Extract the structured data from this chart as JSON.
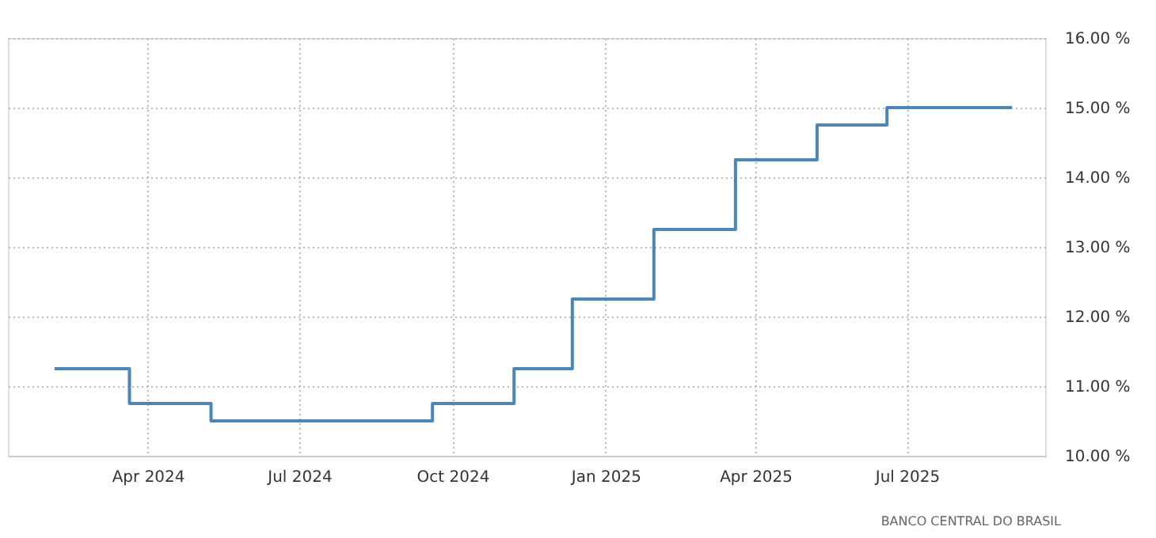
{
  "chart_data": {
    "type": "step",
    "x": [
      "2024-02-05",
      "2024-03-21",
      "2024-05-09",
      "2024-09-19",
      "2024-11-07",
      "2024-12-12",
      "2025-01-30",
      "2025-03-20",
      "2025-05-08",
      "2025-06-19",
      "2025-09-02"
    ],
    "series": [
      {
        "color": "#4b86b9",
        "values": [
          11.25,
          10.75,
          10.5,
          10.75,
          11.25,
          12.25,
          13.25,
          14.25,
          14.75,
          15.0,
          15.0
        ]
      }
    ],
    "xlim": [
      "2024-01-08",
      "2025-09-22"
    ],
    "xticks": [
      {
        "value": "2024-04-01",
        "label": "Apr 2024"
      },
      {
        "value": "2024-07-01",
        "label": "Jul 2024"
      },
      {
        "value": "2024-10-01",
        "label": "Oct 2024"
      },
      {
        "value": "2025-01-01",
        "label": "Jan 2025"
      },
      {
        "value": "2025-04-01",
        "label": "Apr 2025"
      },
      {
        "value": "2025-07-01",
        "label": "Jul 2025"
      }
    ],
    "ylim": [
      10,
      16
    ],
    "yticks": [
      {
        "value": 10,
        "label": "10.00 %"
      },
      {
        "value": 11,
        "label": "11.00 %"
      },
      {
        "value": 12,
        "label": "12.00 %"
      },
      {
        "value": 13,
        "label": "13.00 %"
      },
      {
        "value": 14,
        "label": "14.00 %"
      },
      {
        "value": 15,
        "label": "15.00 %"
      },
      {
        "value": 16,
        "label": "16.00 %"
      }
    ],
    "grid": true,
    "marker": "none",
    "line_style": "solid",
    "annotations": [
      "BANCO CENTRAL DO BRASIL"
    ]
  }
}
